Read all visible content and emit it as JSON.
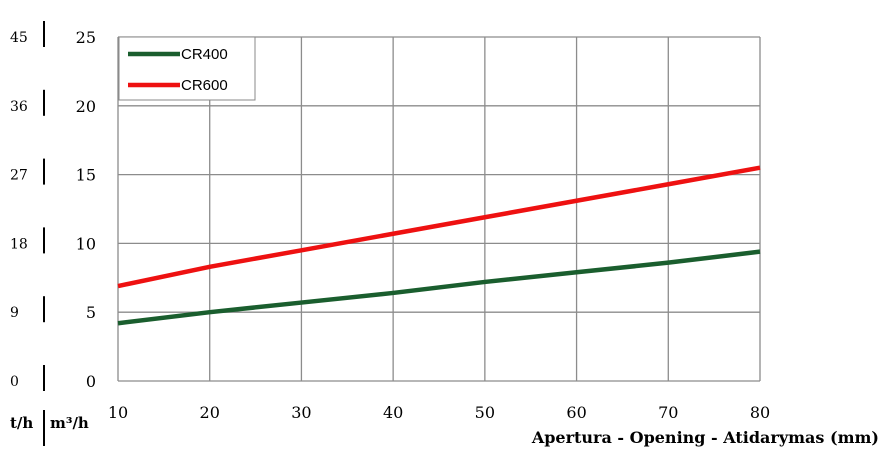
{
  "chart_data": {
    "type": "line",
    "xlabel": "Apertura - Opening - Atidarymas (mm)",
    "x_ticks": [
      "10",
      "20",
      "30",
      "40",
      "50",
      "60",
      "70",
      "80"
    ],
    "xlim": [
      10,
      80
    ],
    "ylim": [
      0,
      25
    ],
    "y_ticks": [
      "0",
      "5",
      "10",
      "15",
      "20",
      "25"
    ],
    "y_unit": "m³/h",
    "secondary_y_ticks": [
      "0",
      "9",
      "18",
      "27",
      "36",
      "45"
    ],
    "secondary_y_unit": "t/h",
    "grid": true,
    "legend_position": "top-left",
    "series": [
      {
        "name": "CR400",
        "color": "#1a5e2e",
        "x": [
          10,
          20,
          30,
          40,
          50,
          60,
          70,
          80
        ],
        "values": [
          4.2,
          5.0,
          5.7,
          6.4,
          7.2,
          7.9,
          8.6,
          9.4
        ]
      },
      {
        "name": "CR600",
        "color": "#ee1111",
        "x": [
          10,
          20,
          30,
          40,
          50,
          60,
          70,
          80
        ],
        "values": [
          6.9,
          8.3,
          9.5,
          10.7,
          11.9,
          13.1,
          14.3,
          15.5
        ]
      }
    ]
  }
}
